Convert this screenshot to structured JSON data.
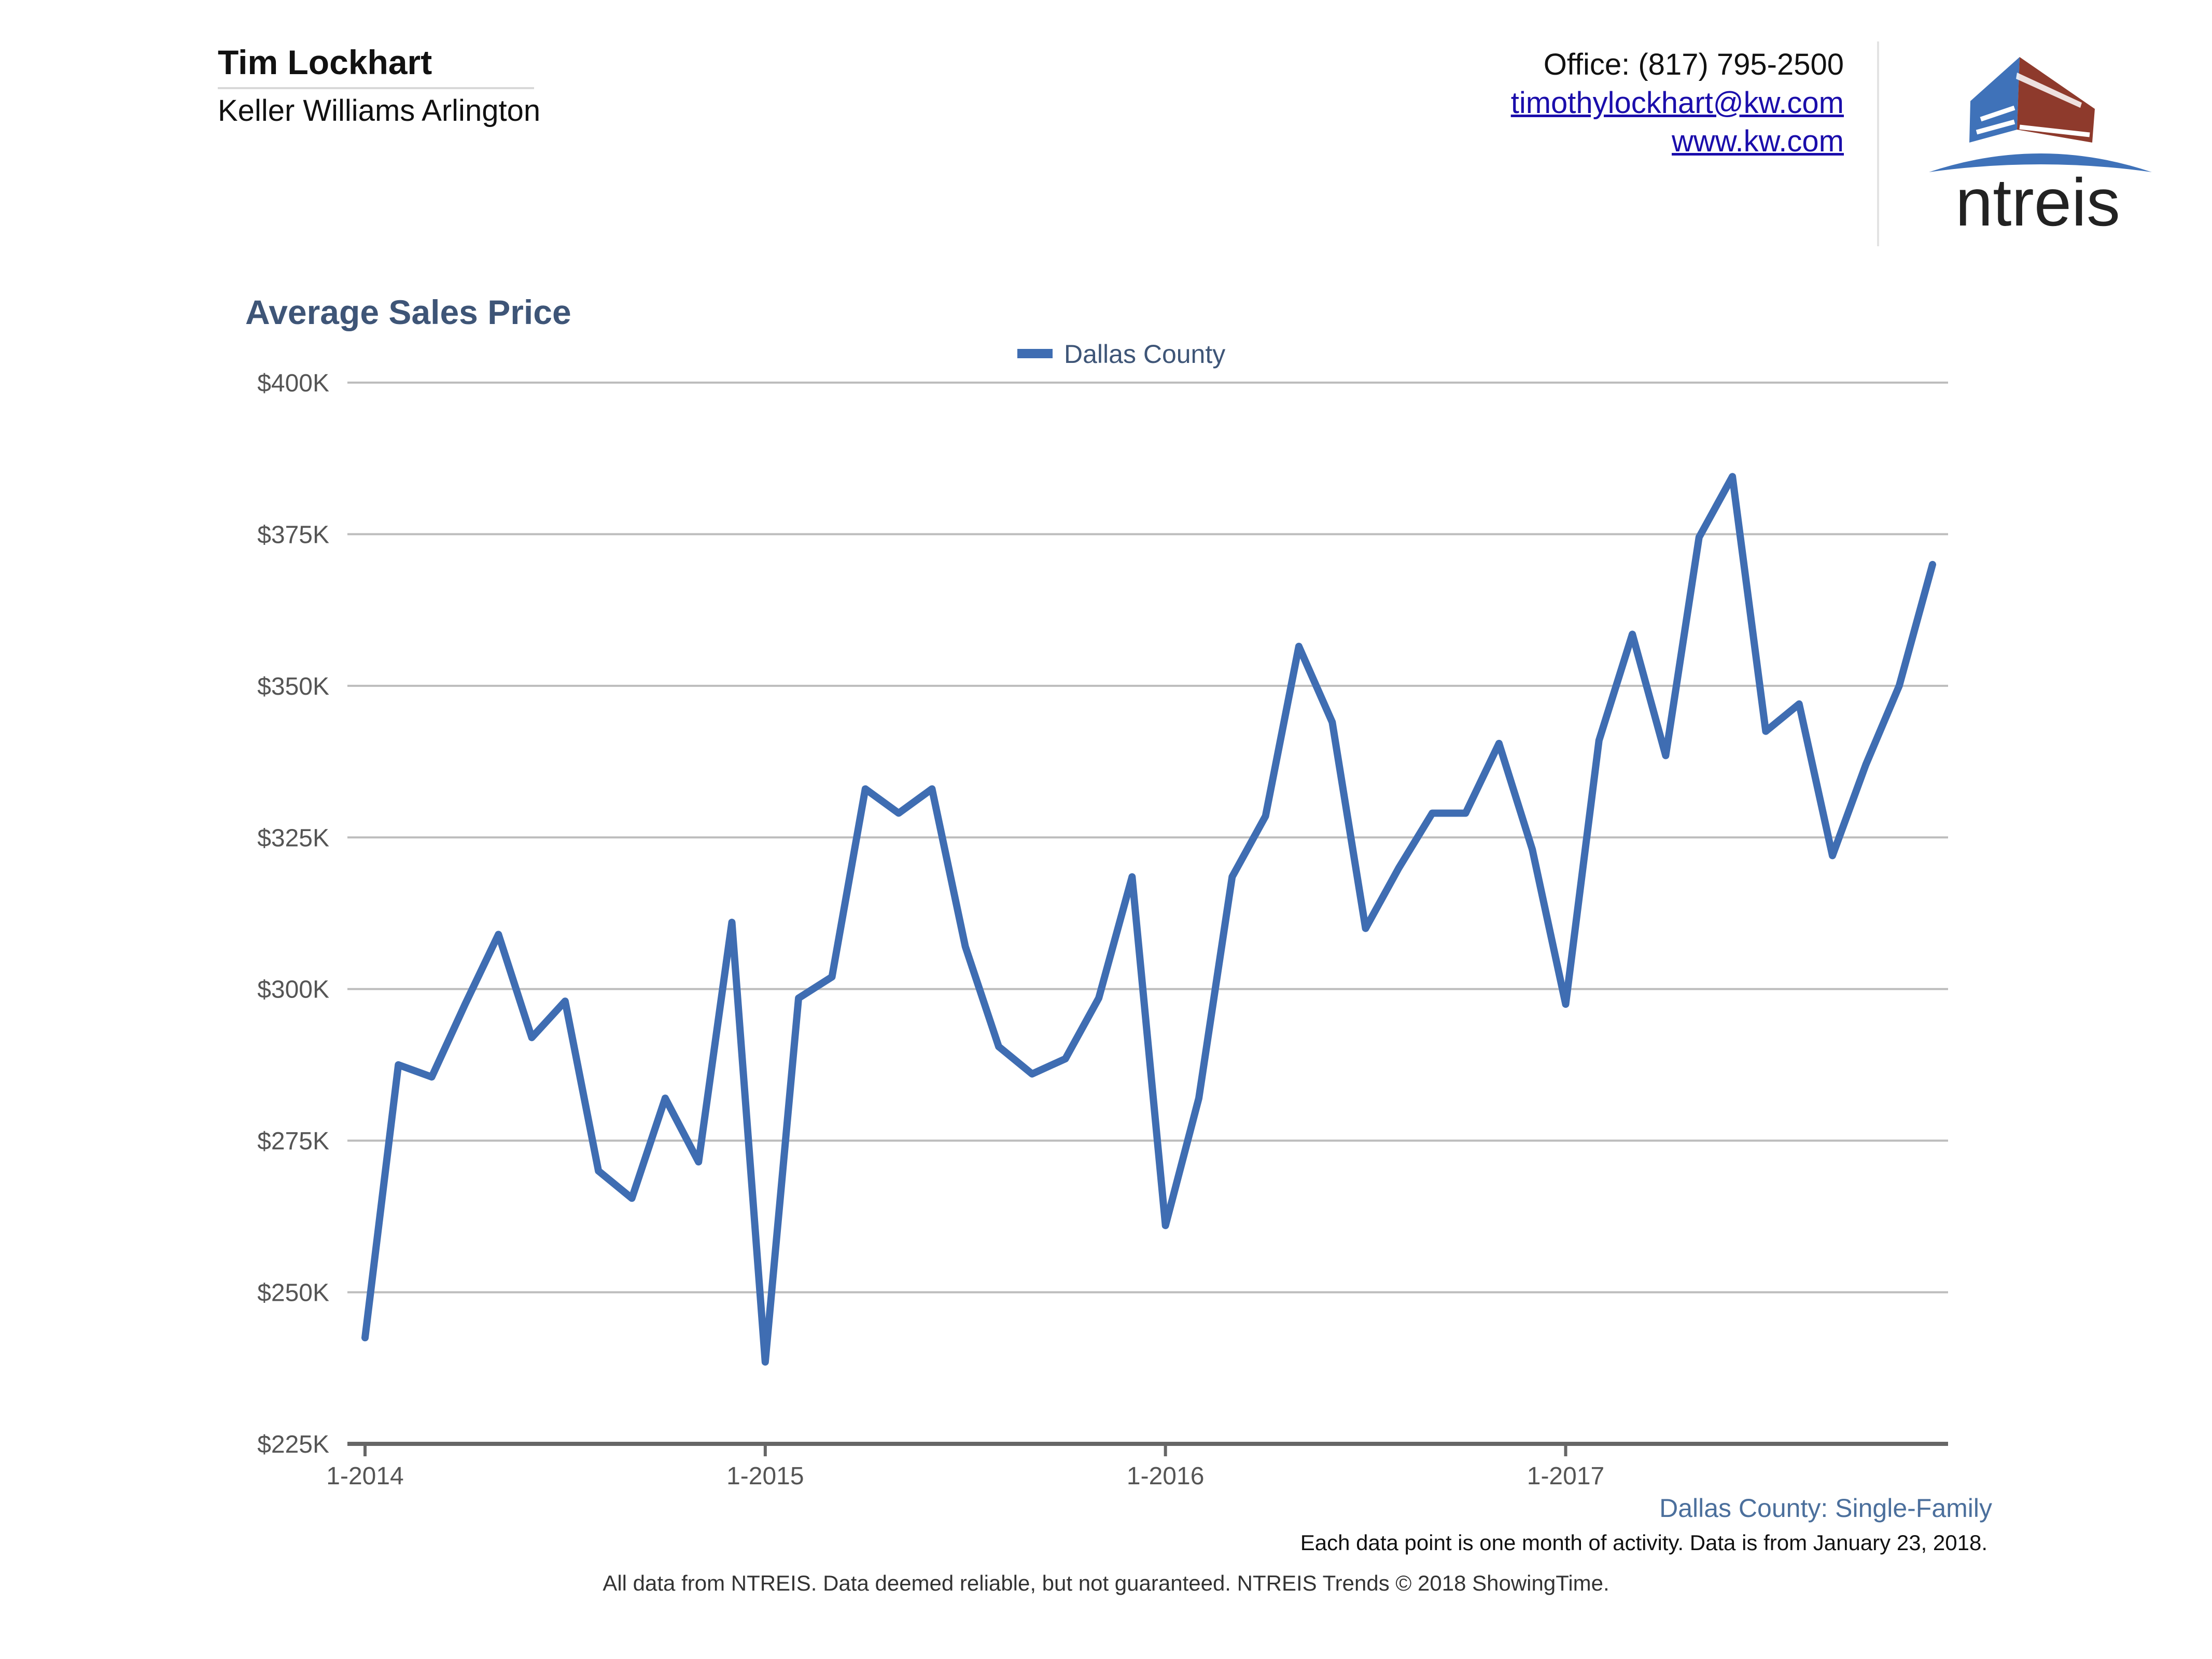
{
  "header": {
    "agent_name": "Tim Lockhart",
    "company": "Keller Williams Arlington",
    "office": "Office: (817) 795-2500",
    "email": "timothylockhart@kw.com",
    "website": "www.kw.com",
    "logo_text": "ntreis"
  },
  "footer": {
    "series_label": "Dallas County: Single-Family",
    "note": "Each data point is one month of activity. Data is from January 23, 2018.",
    "disclaimer": "All data from NTREIS. Data deemed reliable, but not guaranteed. NTREIS Trends © 2018 ShowingTime."
  },
  "colors": {
    "line": "#3f6db2",
    "title": "#3e5577",
    "grid": "#bdbdbd",
    "axis": "#666666",
    "logo_blue": "#3f72b9",
    "logo_red": "#8e3a2c"
  },
  "chart_data": {
    "type": "line",
    "title": "Average Sales Price",
    "xlabel": "",
    "ylabel": "",
    "legend": "top-center",
    "ylim": [
      225000,
      400000
    ],
    "y_ticks": [
      225000,
      250000,
      275000,
      300000,
      325000,
      350000,
      375000,
      400000
    ],
    "y_tick_labels": [
      "$225K",
      "$250K",
      "$275K",
      "$300K",
      "$325K",
      "$350K",
      "$375K",
      "$400K"
    ],
    "x_tick_labels": [
      "1-2014",
      "1-2015",
      "1-2016",
      "1-2017"
    ],
    "x_tick_indices": [
      0,
      12,
      24,
      36
    ],
    "series": [
      {
        "name": "Dallas County",
        "values": [
          242500,
          287500,
          285500,
          297500,
          309000,
          292000,
          298000,
          270000,
          265500,
          282000,
          271500,
          311000,
          238500,
          298500,
          302000,
          333000,
          329000,
          333000,
          307000,
          290500,
          286000,
          288500,
          298500,
          318500,
          261000,
          282000,
          318500,
          328500,
          356500,
          344000,
          310000,
          320000,
          329000,
          329000,
          340500,
          323000,
          297500,
          341000,
          358500,
          338500,
          374500,
          384500,
          342500,
          347000,
          322000,
          337000,
          350000,
          370000
        ]
      }
    ]
  }
}
